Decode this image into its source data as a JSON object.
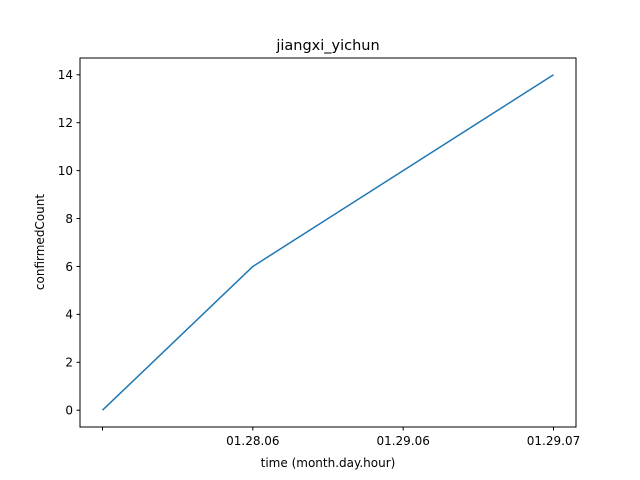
{
  "chart_data": {
    "type": "line",
    "title": "jiangxi_yichun",
    "xlabel": "time (month.day.hour)",
    "ylabel": "confirmedCount",
    "categories": [
      "",
      "01.28.06",
      "01.29.06",
      "01.29.07"
    ],
    "series": [
      {
        "values": [
          0,
          6,
          10,
          14
        ],
        "color": "#1f77b4"
      }
    ],
    "ylim": [
      -0.7,
      14.7
    ],
    "yticks": [
      0,
      2,
      4,
      6,
      8,
      10,
      12,
      14
    ],
    "grid": false,
    "legend": "none"
  }
}
